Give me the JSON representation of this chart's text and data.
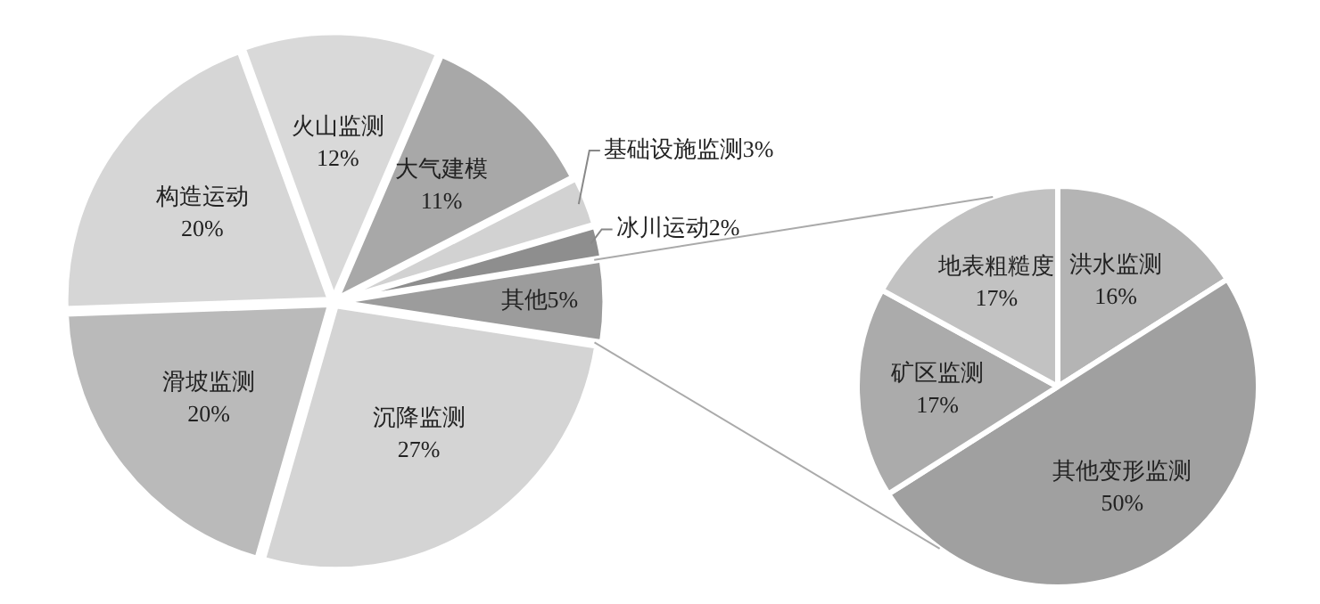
{
  "chart_data": [
    {
      "type": "pie",
      "categories": [
        "火山监测",
        "大气建模",
        "基础设施监测",
        "冰川运动",
        "其他",
        "沉降监测",
        "滑坡监测",
        "构造运动"
      ],
      "values": [
        12,
        11,
        3,
        2,
        5,
        27,
        20,
        20
      ],
      "value_labels": [
        "12%",
        "11%",
        "3%",
        "2%",
        "5%",
        "27%",
        "20%",
        "20%"
      ],
      "colors": [
        "#d9d9d9",
        "#a8a8a8",
        "#d2d2d2",
        "#8e8e8e",
        "#9c9c9c",
        "#d4d4d4",
        "#bababa",
        "#d6d6d6"
      ],
      "legend": false
    },
    {
      "type": "pie",
      "categories": [
        "洪水监测",
        "其他变形监测",
        "矿区监测",
        "地表粗糙度"
      ],
      "values": [
        16,
        50,
        17,
        17
      ],
      "value_labels": [
        "16%",
        "50%",
        "17%",
        "17%"
      ],
      "colors": [
        "#b4b4b4",
        "#a0a0a0",
        "#ababab",
        "#c2c2c2"
      ],
      "legend": false
    }
  ]
}
